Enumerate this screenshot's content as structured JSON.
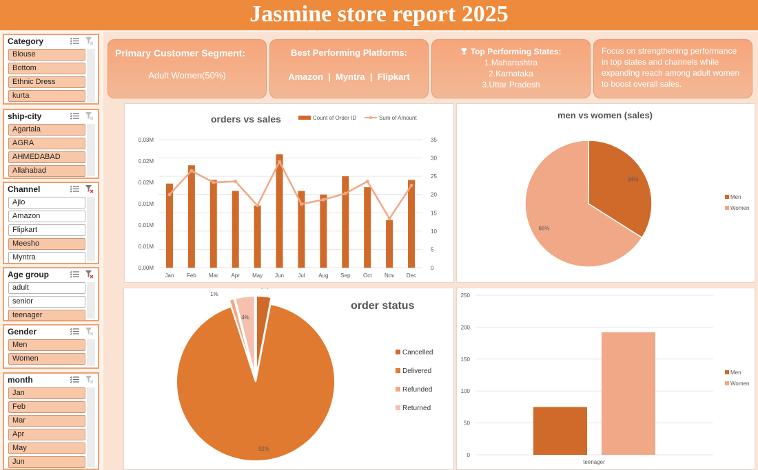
{
  "title": "Jasmine store report 2025",
  "slicers": [
    {
      "title": "Category",
      "top": 0,
      "items": [
        {
          "label": "Blouse",
          "selected": true
        },
        {
          "label": "Bottom",
          "selected": true
        },
        {
          "label": "Ethnic Dress",
          "selected": true
        },
        {
          "label": "kurta",
          "selected": true
        }
      ]
    },
    {
      "title": "ship-city",
      "items": [
        {
          "label": "Agartala",
          "selected": true
        },
        {
          "label": "AGRA",
          "selected": true
        },
        {
          "label": "AHMEDABAD",
          "selected": true
        },
        {
          "label": "Allahabad",
          "selected": true
        }
      ]
    },
    {
      "title": "Channel",
      "items": [
        {
          "label": "Ajio",
          "selected": false
        },
        {
          "label": "Amazon",
          "selected": false
        },
        {
          "label": "Flipkart",
          "selected": false
        },
        {
          "label": "Meesho",
          "selected": true
        },
        {
          "label": "Myntra",
          "selected": false
        }
      ]
    },
    {
      "title": "Age group",
      "items": [
        {
          "label": "adult",
          "selected": false
        },
        {
          "label": "senior",
          "selected": false
        },
        {
          "label": "teenager",
          "selected": true
        }
      ]
    },
    {
      "title": "Gender",
      "items": [
        {
          "label": "Men",
          "selected": true
        },
        {
          "label": "Women",
          "selected": true
        }
      ]
    },
    {
      "title": "month",
      "items": [
        {
          "label": "Jan",
          "selected": true
        },
        {
          "label": "Feb",
          "selected": true
        },
        {
          "label": "Mar",
          "selected": true
        },
        {
          "label": "Apr",
          "selected": true
        },
        {
          "label": "May",
          "selected": true
        },
        {
          "label": "Jun",
          "selected": true
        }
      ]
    }
  ],
  "kpis": {
    "segment": {
      "title": "Primary Customer Segment:",
      "value": "Adult Women(50%)"
    },
    "platforms": {
      "title": "Best Performing Platforms:",
      "value": "Amazon  |  Myntra  |  Flipkart"
    },
    "states": {
      "title": "Top Performing States:",
      "line1": "1.Maharashtra",
      "line2": "2.Karnataka",
      "line3": "3.Uttar Pradesh",
      "icon": "trophy-icon"
    },
    "insight": {
      "text": "Focus on strengthening performance in top states and channels while expanding reach among adult women to boost overall sales."
    }
  },
  "colors": {
    "dark": "#d06a2a",
    "mid": "#e07a30",
    "light": "#f0a887",
    "pale": "#f5c0ae",
    "banner": "#ee8a3c"
  },
  "chart_data": [
    {
      "type": "bar",
      "title": "orders vs sales",
      "categories": [
        "Jan",
        "Feb",
        "Mar",
        "Apr",
        "May",
        "Jun",
        "Jul",
        "Aug",
        "Sep",
        "Oct",
        "Nov",
        "Dec"
      ],
      "series": [
        {
          "name": "Count of Order ID",
          "type": "bar",
          "axis": "right",
          "values": [
            23,
            28,
            24,
            21,
            17,
            31,
            21,
            20,
            25,
            22,
            13,
            24
          ]
        },
        {
          "name": "Sum of Amount",
          "type": "line",
          "axis": "right",
          "values": [
            20,
            26.5,
            23.3,
            23.6,
            17,
            29,
            17.4,
            18.6,
            20.3,
            23.6,
            13.4,
            22.5
          ]
        }
      ],
      "y_left_ticks": [
        "0.00M",
        "0.01M",
        "0.01M",
        "0.01M",
        "0.02M",
        "0.02M",
        "0.03M"
      ],
      "y_right_ticks": [
        "0",
        "5",
        "10",
        "15",
        "20",
        "25",
        "30",
        "35"
      ],
      "ylim_right": [
        0,
        35
      ],
      "legend": "top-right"
    },
    {
      "type": "pie",
      "title": "men vs women (sales)",
      "slices": [
        {
          "name": "Men",
          "value": 34,
          "label": "34%"
        },
        {
          "name": "Women",
          "value": 66,
          "label": "66%"
        }
      ],
      "legend": "right"
    },
    {
      "type": "pie",
      "title": "order status",
      "slices": [
        {
          "name": "Cancelled",
          "value": 3,
          "label": "3%"
        },
        {
          "name": "Delivered",
          "value": 92,
          "label": "92%"
        },
        {
          "name": "Refunded",
          "value": 1,
          "label": "1%"
        },
        {
          "name": "Returned",
          "value": 4,
          "label": "4%"
        }
      ],
      "legend": "right"
    },
    {
      "type": "bar",
      "categories": [
        "teenager"
      ],
      "series": [
        {
          "name": "Men",
          "values": [
            75
          ]
        },
        {
          "name": "Women",
          "values": [
            192
          ]
        }
      ],
      "y_ticks": [
        "0",
        "50",
        "100",
        "150",
        "200",
        "250"
      ],
      "ylim": [
        0,
        250
      ],
      "legend": "right"
    }
  ]
}
